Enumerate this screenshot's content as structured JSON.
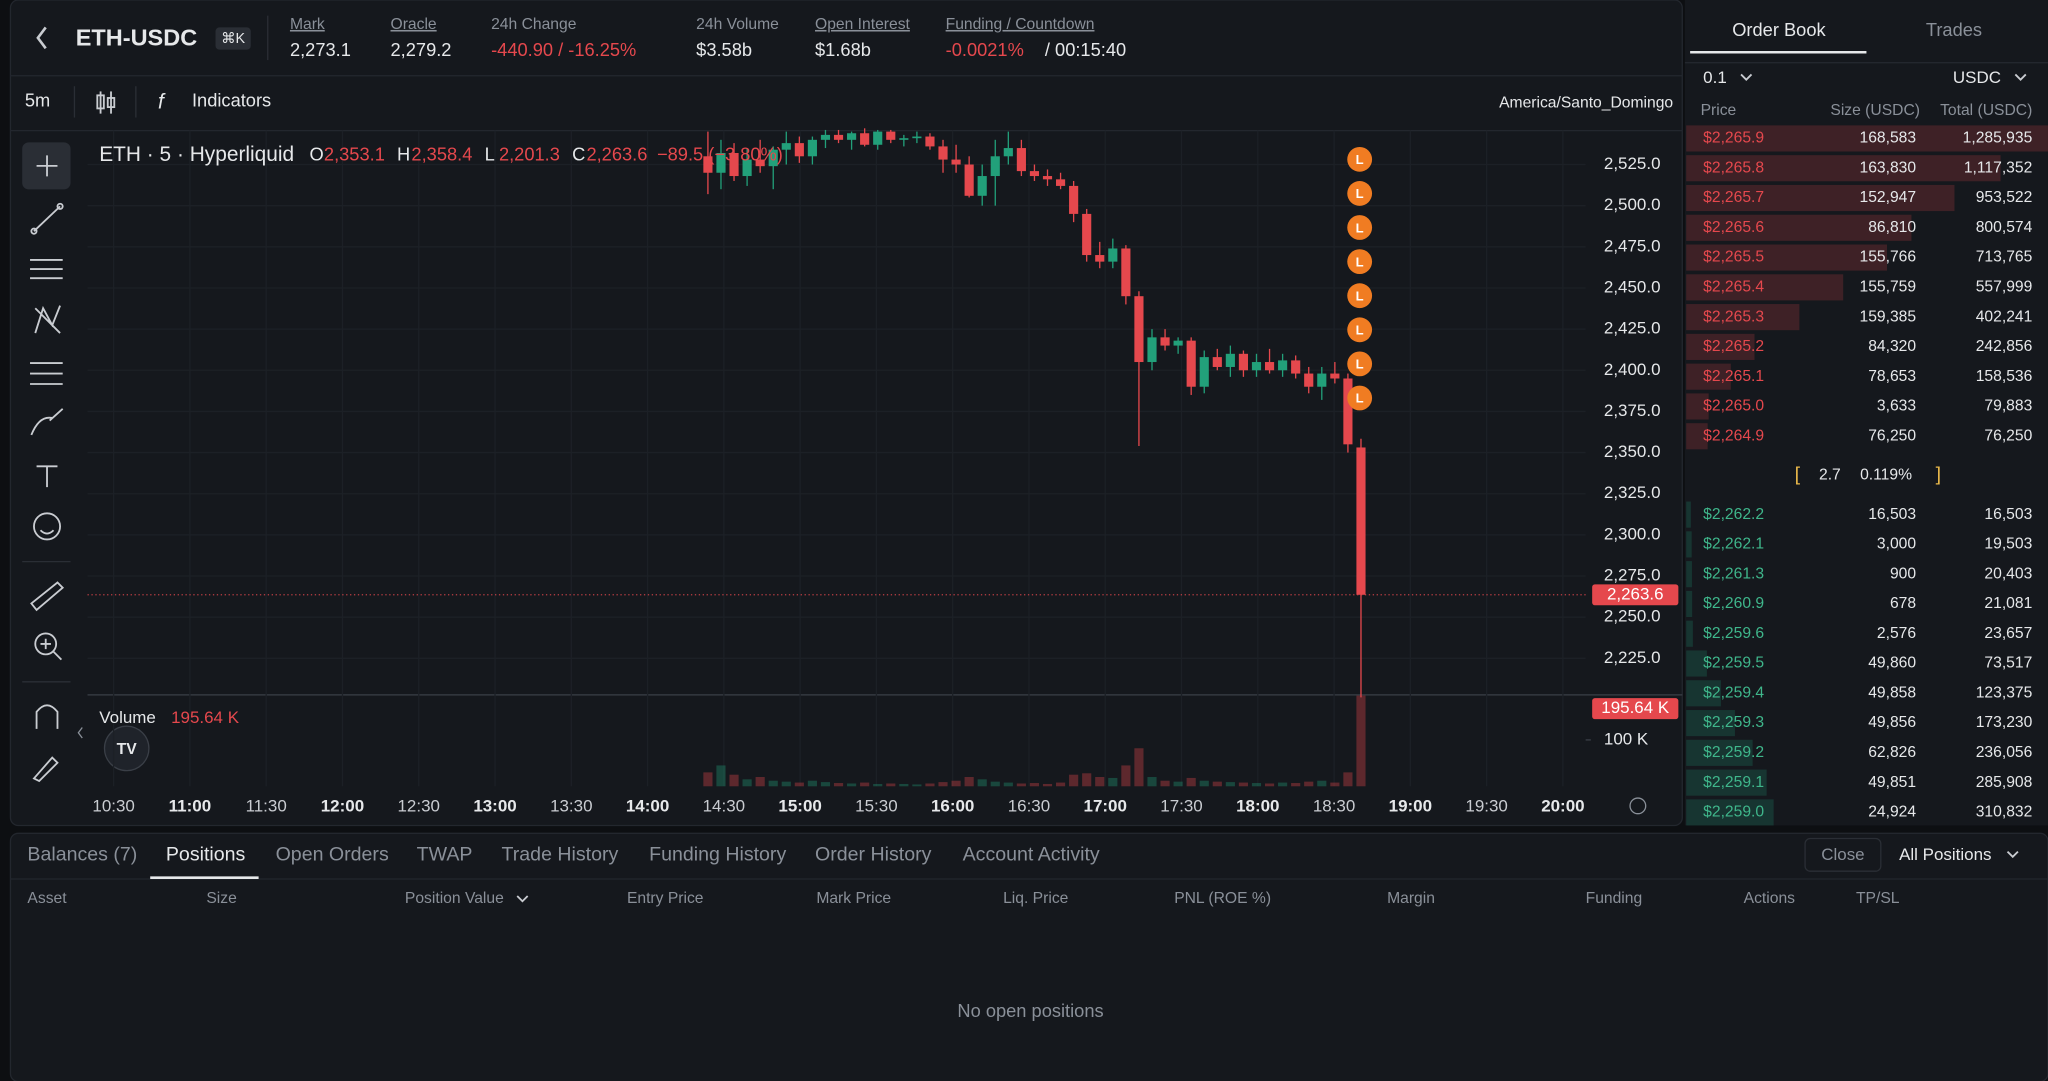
{
  "header": {
    "symbol": "ETH-USDC",
    "shortcut": "⌘K",
    "stats": [
      {
        "label": "Mark",
        "value": "2,273.1"
      },
      {
        "label": "Oracle",
        "value": "2,279.2"
      },
      {
        "label": "24h Change",
        "value": "-440.90 / -16.25%"
      },
      {
        "label": "24h Volume",
        "value": "$3.58b"
      },
      {
        "label": "Open Interest",
        "value": "$1.68b"
      },
      {
        "label": "Funding / Countdown",
        "value": "-0.0021%",
        "countdown": "/ 00:15:40"
      }
    ]
  },
  "toolbar": {
    "interval": "5m",
    "indicators": "Indicators",
    "timezone": "America/Santo_Domingo"
  },
  "chart_data": {
    "type": "candlestick",
    "title": "ETH · 5 · Hyperliquid",
    "ohlc_legend": [
      {
        "key": "O",
        "value": "2,353.1"
      },
      {
        "key": "H",
        "value": "2,358.4"
      },
      {
        "key": "L",
        "value": "2,201.3"
      },
      {
        "key": "C",
        "value": "2,263.6"
      }
    ],
    "change": "−89.5 (−3.80%)",
    "open": [
      2530,
      2520,
      2532,
      2518,
      2528,
      2524,
      2534,
      2538,
      2530,
      2540,
      2543,
      2540,
      2544,
      2537,
      2545,
      2540,
      2541,
      2542,
      2536,
      2528,
      2525,
      2506,
      2518,
      2530,
      2535,
      2521,
      2518,
      2516,
      2512,
      2495,
      2470,
      2466,
      2474,
      2445,
      2405,
      2420,
      2415,
      2418,
      2390,
      2408,
      2402,
      2410,
      2400,
      2405,
      2400,
      2406,
      2398,
      2390,
      2398,
      2395,
      2353.1
    ],
    "high": [
      2545,
      2540,
      2538,
      2535,
      2540,
      2536,
      2545,
      2542,
      2542,
      2546,
      2546,
      2545,
      2547,
      2546,
      2546,
      2543,
      2545,
      2544,
      2540,
      2537,
      2530,
      2525,
      2540,
      2545,
      2540,
      2525,
      2522,
      2520,
      2515,
      2498,
      2478,
      2480,
      2476,
      2448,
      2425,
      2425,
      2420,
      2420,
      2412,
      2413,
      2415,
      2412,
      2410,
      2413,
      2410,
      2409,
      2402,
      2402,
      2405,
      2398,
      2358.4
    ],
    "low": [
      2507,
      2510,
      2515,
      2512,
      2520,
      2510,
      2525,
      2526,
      2525,
      2535,
      2538,
      2534,
      2536,
      2534,
      2538,
      2536,
      2538,
      2534,
      2520,
      2520,
      2505,
      2500,
      2500,
      2525,
      2518,
      2515,
      2512,
      2510,
      2490,
      2466,
      2462,
      2462,
      2440,
      2354,
      2400,
      2412,
      2410,
      2385,
      2386,
      2400,
      2396,
      2396,
      2396,
      2398,
      2396,
      2395,
      2386,
      2382,
      2392,
      2350,
      2201.3
    ],
    "close": [
      2520,
      2532,
      2518,
      2528,
      2524,
      2534,
      2538,
      2530,
      2540,
      2543,
      2540,
      2544,
      2537,
      2545,
      2540,
      2541,
      2542,
      2536,
      2528,
      2525,
      2506,
      2518,
      2530,
      2535,
      2521,
      2518,
      2516,
      2512,
      2495,
      2470,
      2466,
      2474,
      2445,
      2405,
      2420,
      2415,
      2418,
      2390,
      2408,
      2402,
      2410,
      2400,
      2405,
      2400,
      2406,
      2398,
      2390,
      2398,
      2395,
      2355,
      2263.6
    ],
    "ylim": [
      2202.8,
      2545.6
    ],
    "yticks": [
      {
        "value": 2525,
        "label": "2,525.0"
      },
      {
        "value": 2500,
        "label": "2,500.0"
      },
      {
        "value": 2475,
        "label": "2,475.0"
      },
      {
        "value": 2450,
        "label": "2,450.0"
      },
      {
        "value": 2425,
        "label": "2,425.0"
      },
      {
        "value": 2400,
        "label": "2,400.0"
      },
      {
        "value": 2375,
        "label": "2,375.0"
      },
      {
        "value": 2350,
        "label": "2,350.0"
      },
      {
        "value": 2325,
        "label": "2,325.0"
      },
      {
        "value": 2300,
        "label": "2,300.0"
      },
      {
        "value": 2275,
        "label": "2,275.0"
      },
      {
        "value": 2250,
        "label": "2,250.0"
      },
      {
        "value": 2225,
        "label": "2,225.0"
      }
    ],
    "xticks": [
      "10:30",
      "11:00",
      "11:30",
      "12:00",
      "12:30",
      "13:00",
      "13:30",
      "14:00",
      "14:30",
      "15:00",
      "15:30",
      "16:00",
      "16:30",
      "17:00",
      "17:30",
      "18:00",
      "18:30",
      "19:00",
      "19:30",
      "20:00"
    ],
    "last_price": {
      "value": 2263.6,
      "label": "2,263.6"
    },
    "colors": {
      "up": "#22a07a",
      "down": "#e5484d"
    },
    "volume": {
      "title": "Volume",
      "values": [
        30000,
        45000,
        25000,
        15000,
        20000,
        12000,
        10000,
        8000,
        12000,
        9000,
        7000,
        6000,
        8000,
        5000,
        6000,
        5000,
        4000,
        6000,
        9000,
        12000,
        20000,
        15000,
        10000,
        8000,
        6000,
        7000,
        5000,
        8000,
        25000,
        28000,
        20000,
        18000,
        45000,
        82000,
        20000,
        12000,
        10000,
        18000,
        12000,
        10000,
        9000,
        8000,
        7000,
        6000,
        8000,
        7000,
        10000,
        12000,
        8000,
        30000,
        195640
      ],
      "ylim": [
        0,
        200000
      ],
      "yticks": [
        {
          "value": 100000,
          "label": "100 K"
        }
      ],
      "last": {
        "value": 195640,
        "label": "195.64 K"
      }
    },
    "liquidation_markers": [
      "L",
      "L",
      "L",
      "L",
      "L",
      "L",
      "L",
      "L"
    ]
  },
  "order_book": {
    "tabs": [
      "Order Book",
      "Trades"
    ],
    "tick_size": "0.1",
    "currency": "USDC",
    "columns": [
      "Price",
      "Size (USDC)",
      "Total (USDC)"
    ],
    "asks": [
      [
        "$2,265.9",
        "168,583",
        "1,285,935"
      ],
      [
        "$2,265.8",
        "163,830",
        "1,117,352"
      ],
      [
        "$2,265.7",
        "152,947",
        "953,522"
      ],
      [
        "$2,265.6",
        "86,810",
        "800,574"
      ],
      [
        "$2,265.5",
        "155,766",
        "713,765"
      ],
      [
        "$2,265.4",
        "155,759",
        "557,999"
      ],
      [
        "$2,265.3",
        "159,385",
        "402,241"
      ],
      [
        "$2,265.2",
        "84,320",
        "242,856"
      ],
      [
        "$2,265.1",
        "78,653",
        "158,536"
      ],
      [
        "$2,265.0",
        "3,633",
        "79,883"
      ],
      [
        "$2,264.9",
        "76,250",
        "76,250"
      ]
    ],
    "spread": {
      "value": "2.7",
      "percent": "0.119%"
    },
    "bids": [
      [
        "$2,262.2",
        "16,503",
        "16,503"
      ],
      [
        "$2,262.1",
        "3,000",
        "19,503"
      ],
      [
        "$2,261.3",
        "900",
        "20,403"
      ],
      [
        "$2,260.9",
        "678",
        "21,081"
      ],
      [
        "$2,259.6",
        "2,576",
        "23,657"
      ],
      [
        "$2,259.5",
        "49,860",
        "73,517"
      ],
      [
        "$2,259.4",
        "49,858",
        "123,375"
      ],
      [
        "$2,259.3",
        "49,856",
        "173,230"
      ],
      [
        "$2,259.2",
        "62,826",
        "236,056"
      ],
      [
        "$2,259.1",
        "49,851",
        "285,908"
      ],
      [
        "$2,259.0",
        "24,924",
        "310,832"
      ]
    ]
  },
  "bottom_panel": {
    "tabs": [
      "Balances (7)",
      "Positions",
      "Open Orders",
      "TWAP",
      "Trade History",
      "Funding History",
      "Order History",
      "Account Activity"
    ],
    "close": "Close",
    "filter": "All Positions",
    "columns": [
      "Asset",
      "Size",
      "Position Value",
      "Entry Price",
      "Mark Price",
      "Liq. Price",
      "PNL (ROE %)",
      "Margin",
      "Funding",
      "Actions",
      "TP/SL"
    ],
    "empty": "No open positions"
  }
}
